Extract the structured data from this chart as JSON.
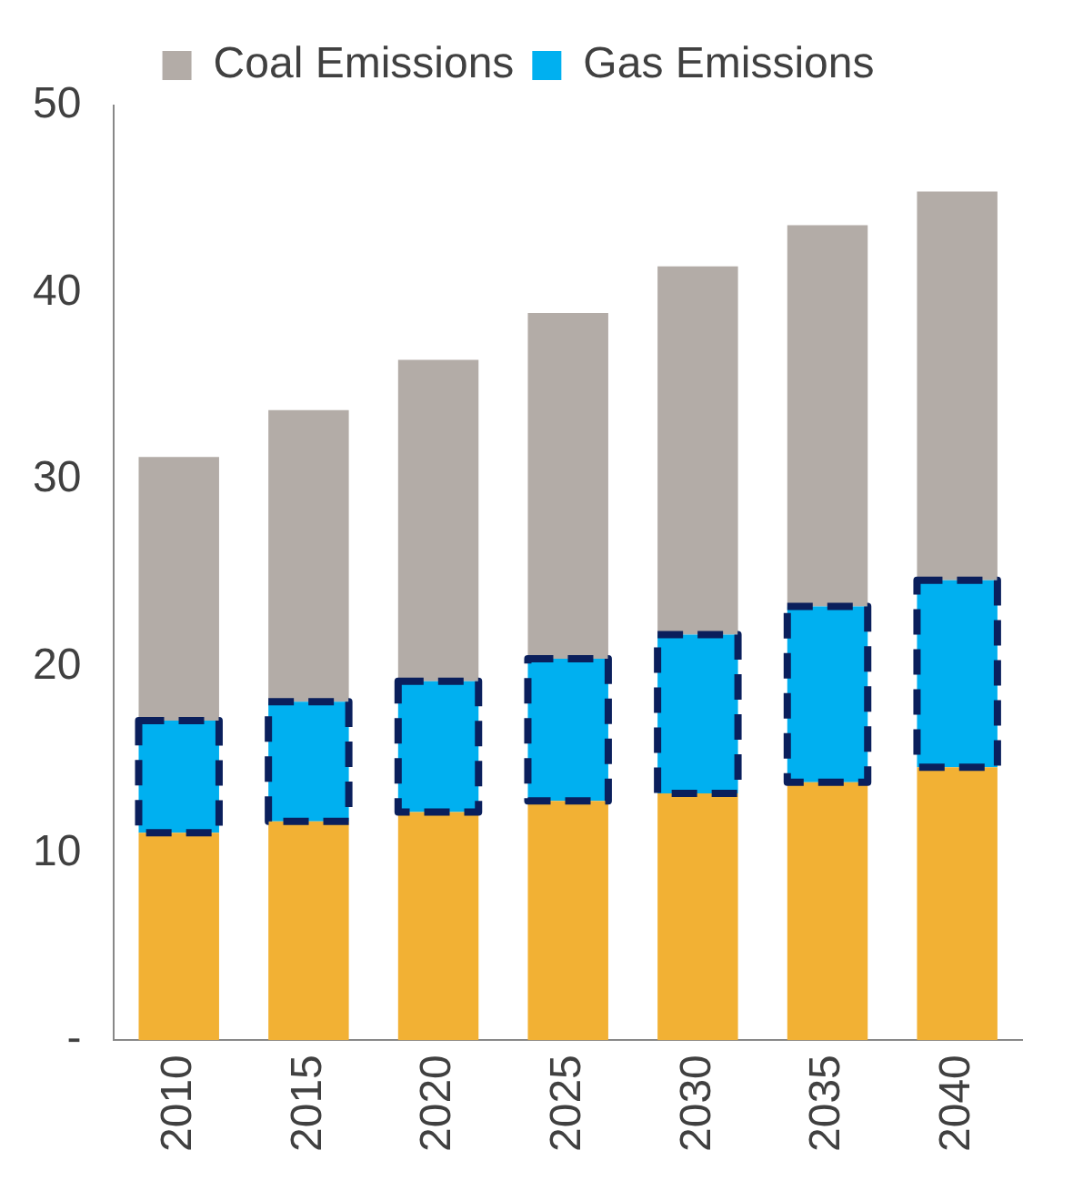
{
  "chart_data": {
    "type": "bar",
    "stacked": true,
    "categories": [
      "2010",
      "2015",
      "2020",
      "2025",
      "2030",
      "2035",
      "2040"
    ],
    "series": [
      {
        "color": "#f2b134",
        "values": [
          11.1,
          11.7,
          12.2,
          12.8,
          13.2,
          13.8,
          14.6
        ]
      },
      {
        "name": "Gas Emissions",
        "color": "#00b0f0",
        "line_style": "dashed",
        "values": [
          6.0,
          6.4,
          7.0,
          7.6,
          8.5,
          9.4,
          10.0
        ]
      },
      {
        "name": "Coal Emissions",
        "color": "#b3aca7",
        "values": [
          14.1,
          15.6,
          17.2,
          18.5,
          19.7,
          20.4,
          20.8
        ]
      }
    ],
    "ylim": [
      0,
      50
    ],
    "yticks": [
      {
        "value": 0,
        "label": "-"
      },
      10,
      20,
      30,
      40,
      50
    ],
    "grid": false,
    "legend": "top"
  }
}
